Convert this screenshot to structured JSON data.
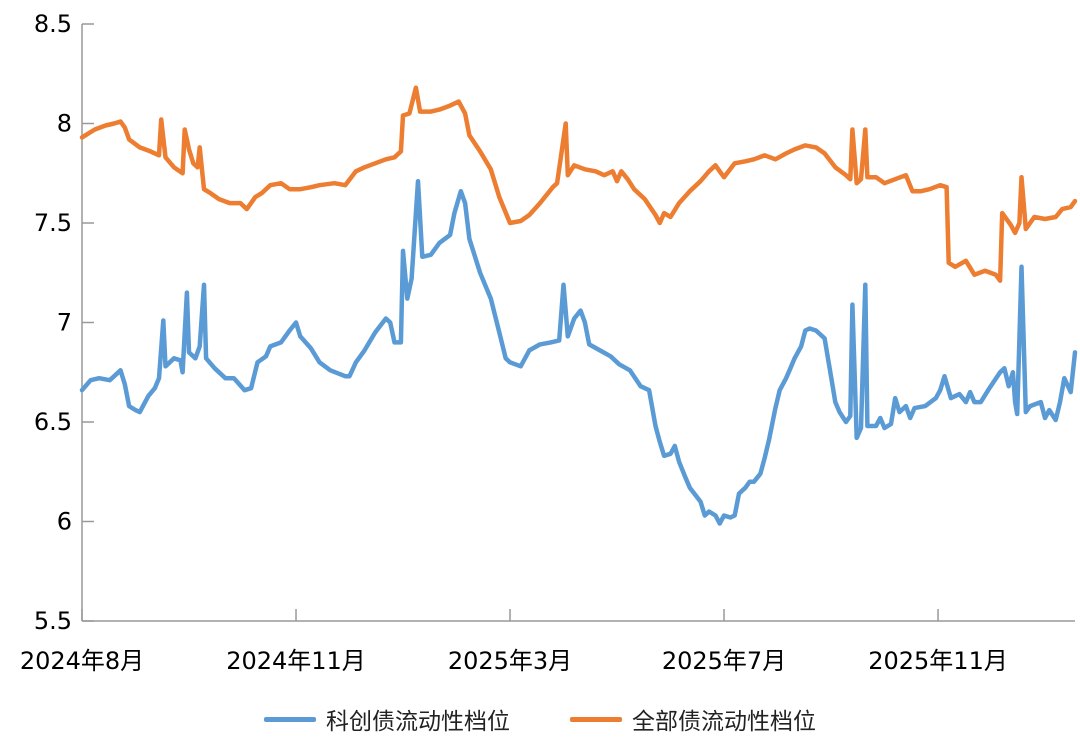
{
  "chart_data": {
    "type": "line",
    "title": "",
    "xlabel": "",
    "ylabel": "",
    "ylim": [
      5.5,
      8.5
    ],
    "yticks": [
      "5.5",
      "6",
      "6.5",
      "7",
      "7.5",
      "8",
      "8.5"
    ],
    "xlim": [
      0,
      464
    ],
    "x_unit": "trading-day index",
    "xticks": [
      {
        "x": 0,
        "label": "2024年8月"
      },
      {
        "x": 100,
        "label": "2024年11月"
      },
      {
        "x": 200,
        "label": "2025年3月"
      },
      {
        "x": 300,
        "label": "2025年7月"
      },
      {
        "x": 400,
        "label": "2025年11月"
      }
    ],
    "grid": false,
    "legend_position": "bottom",
    "series": [
      {
        "name": "科创债流动性档位",
        "color": "#5b9bd5",
        "points": [
          [
            0,
            6.66
          ],
          [
            4,
            6.71
          ],
          [
            8,
            6.72
          ],
          [
            13,
            6.71
          ],
          [
            18,
            6.76
          ],
          [
            20,
            6.69
          ],
          [
            22,
            6.58
          ],
          [
            25,
            6.56
          ],
          [
            27,
            6.55
          ],
          [
            31,
            6.63
          ],
          [
            34,
            6.67
          ],
          [
            36,
            6.72
          ],
          [
            38,
            7.01
          ],
          [
            39,
            6.78
          ],
          [
            43,
            6.82
          ],
          [
            46,
            6.81
          ],
          [
            47,
            6.75
          ],
          [
            49,
            7.15
          ],
          [
            50,
            6.85
          ],
          [
            53,
            6.82
          ],
          [
            55,
            6.88
          ],
          [
            57,
            7.19
          ],
          [
            58,
            6.82
          ],
          [
            62,
            6.77
          ],
          [
            67,
            6.72
          ],
          [
            71,
            6.72
          ],
          [
            76,
            6.66
          ],
          [
            79,
            6.67
          ],
          [
            82,
            6.8
          ],
          [
            86,
            6.83
          ],
          [
            88,
            6.88
          ],
          [
            93,
            6.9
          ],
          [
            97,
            6.96
          ],
          [
            100,
            7.0
          ],
          [
            102,
            6.93
          ],
          [
            107,
            6.87
          ],
          [
            111,
            6.8
          ],
          [
            116,
            6.76
          ],
          [
            123,
            6.73
          ],
          [
            125,
            6.73
          ],
          [
            128,
            6.8
          ],
          [
            132,
            6.86
          ],
          [
            137,
            6.95
          ],
          [
            142,
            7.02
          ],
          [
            144,
            7.0
          ],
          [
            146,
            6.9
          ],
          [
            149,
            6.9
          ],
          [
            150,
            7.36
          ],
          [
            152,
            7.12
          ],
          [
            154,
            7.22
          ],
          [
            157,
            7.71
          ],
          [
            159,
            7.33
          ],
          [
            163,
            7.34
          ],
          [
            167,
            7.4
          ],
          [
            172,
            7.44
          ],
          [
            174,
            7.55
          ],
          [
            177,
            7.66
          ],
          [
            179,
            7.6
          ],
          [
            181,
            7.42
          ],
          [
            186,
            7.25
          ],
          [
            191,
            7.12
          ],
          [
            195,
            6.95
          ],
          [
            198,
            6.82
          ],
          [
            200,
            6.8
          ],
          [
            205,
            6.78
          ],
          [
            209,
            6.86
          ],
          [
            214,
            6.89
          ],
          [
            219,
            6.9
          ],
          [
            223,
            6.91
          ],
          [
            225,
            7.19
          ],
          [
            227,
            6.93
          ],
          [
            230,
            7.02
          ],
          [
            233,
            7.06
          ],
          [
            235,
            7.0
          ],
          [
            237,
            6.89
          ],
          [
            242,
            6.86
          ],
          [
            247,
            6.83
          ],
          [
            251,
            6.79
          ],
          [
            256,
            6.76
          ],
          [
            261,
            6.68
          ],
          [
            265,
            6.66
          ],
          [
            268,
            6.48
          ],
          [
            270,
            6.4
          ],
          [
            272,
            6.33
          ],
          [
            275,
            6.34
          ],
          [
            277,
            6.38
          ],
          [
            279,
            6.3
          ],
          [
            282,
            6.22
          ],
          [
            284,
            6.17
          ],
          [
            289,
            6.1
          ],
          [
            291,
            6.03
          ],
          [
            293,
            6.05
          ],
          [
            296,
            6.03
          ],
          [
            298,
            5.99
          ],
          [
            300,
            6.03
          ],
          [
            303,
            6.02
          ],
          [
            305,
            6.03
          ],
          [
            307,
            6.14
          ],
          [
            310,
            6.17
          ],
          [
            312,
            6.2
          ],
          [
            314,
            6.2
          ],
          [
            317,
            6.24
          ],
          [
            319,
            6.32
          ],
          [
            321,
            6.41
          ],
          [
            324,
            6.57
          ],
          [
            326,
            6.66
          ],
          [
            329,
            6.72
          ],
          [
            331,
            6.77
          ],
          [
            333,
            6.82
          ],
          [
            336,
            6.88
          ],
          [
            338,
            6.96
          ],
          [
            340,
            6.97
          ],
          [
            343,
            6.96
          ],
          [
            347,
            6.92
          ],
          [
            350,
            6.73
          ],
          [
            352,
            6.6
          ],
          [
            354,
            6.55
          ],
          [
            357,
            6.5
          ],
          [
            359,
            6.53
          ],
          [
            360,
            7.09
          ],
          [
            362,
            6.42
          ],
          [
            364,
            6.47
          ],
          [
            366,
            7.19
          ],
          [
            367,
            6.48
          ],
          [
            371,
            6.48
          ],
          [
            373,
            6.52
          ],
          [
            375,
            6.47
          ],
          [
            378,
            6.49
          ],
          [
            380,
            6.62
          ],
          [
            382,
            6.55
          ],
          [
            385,
            6.58
          ],
          [
            387,
            6.52
          ],
          [
            389,
            6.57
          ],
          [
            394,
            6.58
          ],
          [
            399,
            6.62
          ],
          [
            401,
            6.66
          ],
          [
            403,
            6.73
          ],
          [
            406,
            6.62
          ],
          [
            408,
            6.63
          ],
          [
            410,
            6.64
          ],
          [
            413,
            6.6
          ],
          [
            415,
            6.65
          ],
          [
            417,
            6.6
          ],
          [
            420,
            6.6
          ],
          [
            424,
            6.67
          ],
          [
            429,
            6.75
          ],
          [
            431,
            6.77
          ],
          [
            433,
            6.68
          ],
          [
            435,
            6.75
          ],
          [
            436,
            6.6
          ],
          [
            437,
            6.54
          ],
          [
            439,
            7.28
          ],
          [
            441,
            6.55
          ],
          [
            443,
            6.58
          ],
          [
            448,
            6.6
          ],
          [
            450,
            6.52
          ],
          [
            452,
            6.56
          ],
          [
            455,
            6.51
          ],
          [
            457,
            6.6
          ],
          [
            459,
            6.72
          ],
          [
            462,
            6.65
          ],
          [
            464,
            6.85
          ]
        ]
      },
      {
        "name": "全部债流动性档位",
        "color": "#ed7d31",
        "points": [
          [
            0,
            7.93
          ],
          [
            6,
            7.97
          ],
          [
            11,
            7.99
          ],
          [
            15,
            8.0
          ],
          [
            18,
            8.01
          ],
          [
            20,
            7.98
          ],
          [
            22,
            7.92
          ],
          [
            27,
            7.88
          ],
          [
            32,
            7.86
          ],
          [
            36,
            7.84
          ],
          [
            37,
            8.02
          ],
          [
            39,
            7.83
          ],
          [
            43,
            7.78
          ],
          [
            47,
            7.75
          ],
          [
            48,
            7.97
          ],
          [
            50,
            7.87
          ],
          [
            52,
            7.8
          ],
          [
            54,
            7.78
          ],
          [
            55,
            7.88
          ],
          [
            57,
            7.67
          ],
          [
            60,
            7.65
          ],
          [
            64,
            7.62
          ],
          [
            69,
            7.6
          ],
          [
            74,
            7.6
          ],
          [
            77,
            7.57
          ],
          [
            81,
            7.63
          ],
          [
            84,
            7.65
          ],
          [
            88,
            7.69
          ],
          [
            93,
            7.7
          ],
          [
            97,
            7.67
          ],
          [
            102,
            7.67
          ],
          [
            107,
            7.68
          ],
          [
            111,
            7.69
          ],
          [
            118,
            7.7
          ],
          [
            123,
            7.69
          ],
          [
            128,
            7.76
          ],
          [
            132,
            7.78
          ],
          [
            137,
            7.8
          ],
          [
            142,
            7.82
          ],
          [
            146,
            7.83
          ],
          [
            149,
            7.86
          ],
          [
            150,
            8.04
          ],
          [
            153,
            8.05
          ],
          [
            156,
            8.18
          ],
          [
            158,
            8.06
          ],
          [
            163,
            8.06
          ],
          [
            167,
            8.07
          ],
          [
            172,
            8.09
          ],
          [
            176,
            8.11
          ],
          [
            179,
            8.05
          ],
          [
            181,
            7.94
          ],
          [
            186,
            7.86
          ],
          [
            191,
            7.77
          ],
          [
            195,
            7.63
          ],
          [
            200,
            7.5
          ],
          [
            205,
            7.51
          ],
          [
            209,
            7.54
          ],
          [
            214,
            7.6
          ],
          [
            220,
            7.68
          ],
          [
            222,
            7.7
          ],
          [
            226,
            8.0
          ],
          [
            227,
            7.74
          ],
          [
            230,
            7.79
          ],
          [
            235,
            7.77
          ],
          [
            240,
            7.76
          ],
          [
            244,
            7.74
          ],
          [
            248,
            7.76
          ],
          [
            250,
            7.71
          ],
          [
            252,
            7.76
          ],
          [
            255,
            7.72
          ],
          [
            258,
            7.67
          ],
          [
            263,
            7.62
          ],
          [
            268,
            7.54
          ],
          [
            270,
            7.5
          ],
          [
            272,
            7.55
          ],
          [
            275,
            7.53
          ],
          [
            279,
            7.6
          ],
          [
            284,
            7.66
          ],
          [
            289,
            7.71
          ],
          [
            293,
            7.76
          ],
          [
            296,
            7.79
          ],
          [
            298,
            7.76
          ],
          [
            300,
            7.73
          ],
          [
            305,
            7.8
          ],
          [
            310,
            7.81
          ],
          [
            314,
            7.82
          ],
          [
            319,
            7.84
          ],
          [
            324,
            7.82
          ],
          [
            329,
            7.85
          ],
          [
            333,
            7.87
          ],
          [
            338,
            7.89
          ],
          [
            343,
            7.88
          ],
          [
            347,
            7.85
          ],
          [
            352,
            7.78
          ],
          [
            357,
            7.74
          ],
          [
            359,
            7.72
          ],
          [
            360,
            7.97
          ],
          [
            362,
            7.7
          ],
          [
            364,
            7.72
          ],
          [
            366,
            7.97
          ],
          [
            367,
            7.73
          ],
          [
            371,
            7.73
          ],
          [
            375,
            7.7
          ],
          [
            380,
            7.72
          ],
          [
            385,
            7.74
          ],
          [
            388,
            7.66
          ],
          [
            392,
            7.66
          ],
          [
            396,
            7.67
          ],
          [
            401,
            7.69
          ],
          [
            404,
            7.68
          ],
          [
            405,
            7.3
          ],
          [
            408,
            7.28
          ],
          [
            413,
            7.31
          ],
          [
            417,
            7.24
          ],
          [
            422,
            7.26
          ],
          [
            427,
            7.24
          ],
          [
            429,
            7.21
          ],
          [
            430,
            7.55
          ],
          [
            434,
            7.49
          ],
          [
            436,
            7.45
          ],
          [
            438,
            7.5
          ],
          [
            439,
            7.73
          ],
          [
            441,
            7.47
          ],
          [
            445,
            7.53
          ],
          [
            450,
            7.52
          ],
          [
            455,
            7.53
          ],
          [
            458,
            7.57
          ],
          [
            462,
            7.58
          ],
          [
            464,
            7.61
          ]
        ]
      }
    ]
  }
}
